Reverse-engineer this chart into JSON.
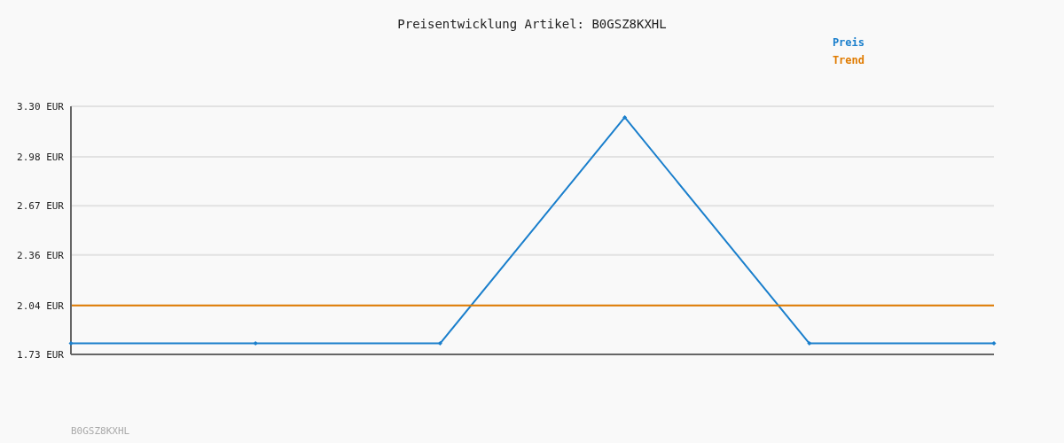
{
  "chart_data": {
    "type": "line",
    "title": "Preisentwicklung Artikel: B0GSZ8KXHL",
    "categories": [
      null,
      null,
      null,
      null,
      null,
      null
    ],
    "series": [
      {
        "name": "Preis",
        "color": "#1a7fcc",
        "marker": "diamond",
        "values": [
          1.8,
          1.8,
          1.8,
          3.23,
          1.8,
          1.8
        ]
      },
      {
        "name": "Trend",
        "color": "#e07b00",
        "marker": "none",
        "values": [
          2.04,
          2.04,
          2.04,
          2.04,
          2.04,
          2.04
        ]
      }
    ],
    "ylim": [
      1.73,
      3.3
    ],
    "yticks": [
      {
        "value": 1.73,
        "label": "1.73 EUR"
      },
      {
        "value": 2.04,
        "label": "2.04 EUR"
      },
      {
        "value": 2.36,
        "label": "2.36 EUR"
      },
      {
        "value": 2.67,
        "label": "2.67 EUR"
      },
      {
        "value": 2.98,
        "label": "2.98 EUR"
      },
      {
        "value": 3.3,
        "label": "3.30 EUR"
      }
    ],
    "grid": "y",
    "legend": "top right",
    "tick_labels": "y",
    "annotations": [
      "B0GSZ8KXHL"
    ]
  }
}
